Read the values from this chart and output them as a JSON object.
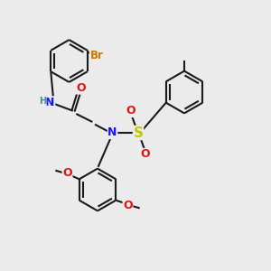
{
  "bg": "#ebebeb",
  "bond_color": "#1a1a1a",
  "colors": {
    "N": "#1414ff",
    "O": "#dd1414",
    "S": "#c8c800",
    "Br": "#c87800",
    "H": "#4a8899"
  },
  "lw": 1.5,
  "fs": 8.5,
  "r": 0.078
}
